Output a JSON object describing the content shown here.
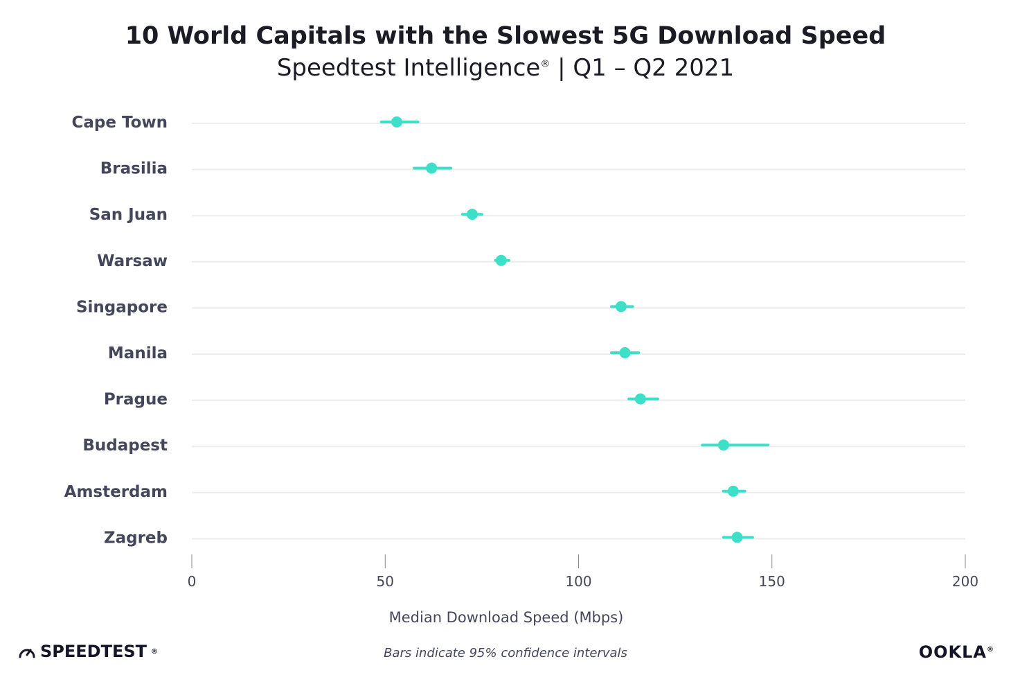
{
  "header": {
    "title": "10 World Capitals with the Slowest 5G Download Speed",
    "subtitle_main": "Speedtest Intelligence",
    "subtitle_mark": "®",
    "subtitle_rest": " | Q1 – Q2 2021"
  },
  "chart_data": {
    "type": "scatter",
    "title": "10 World Capitals with the Slowest 5G Download Speed",
    "subtitle": "Speedtest Intelligence® | Q1 – Q2 2021",
    "xlabel": "Median Download Speed (Mbps)",
    "ylabel": "",
    "xlim": [
      0,
      200
    ],
    "xticks": [
      0,
      50,
      100,
      150,
      200
    ],
    "grid": true,
    "categories": [
      "Cape Town",
      "Brasilia",
      "San Juan",
      "Warsaw",
      "Singapore",
      "Manila",
      "Prague",
      "Budapest",
      "Amsterdam",
      "Zagreb"
    ],
    "values": [
      53,
      62,
      72.5,
      80,
      111,
      112,
      116,
      137.5,
      140,
      141
    ],
    "ci_low": [
      49,
      57.5,
      70,
      78.5,
      108.5,
      108.5,
      113,
      132,
      137.5,
      137.5
    ],
    "ci_high": [
      58.5,
      67,
      75,
      82,
      114,
      115.5,
      120.5,
      149,
      143,
      145
    ],
    "footnote": "Bars indicate 95% confidence intervals",
    "point_color": "#3ddfc9"
  },
  "branding": {
    "left_logo": "SPEEDTEST",
    "left_logo_mark": "®",
    "right_logo": "OOKLA",
    "right_logo_mark": "®"
  }
}
